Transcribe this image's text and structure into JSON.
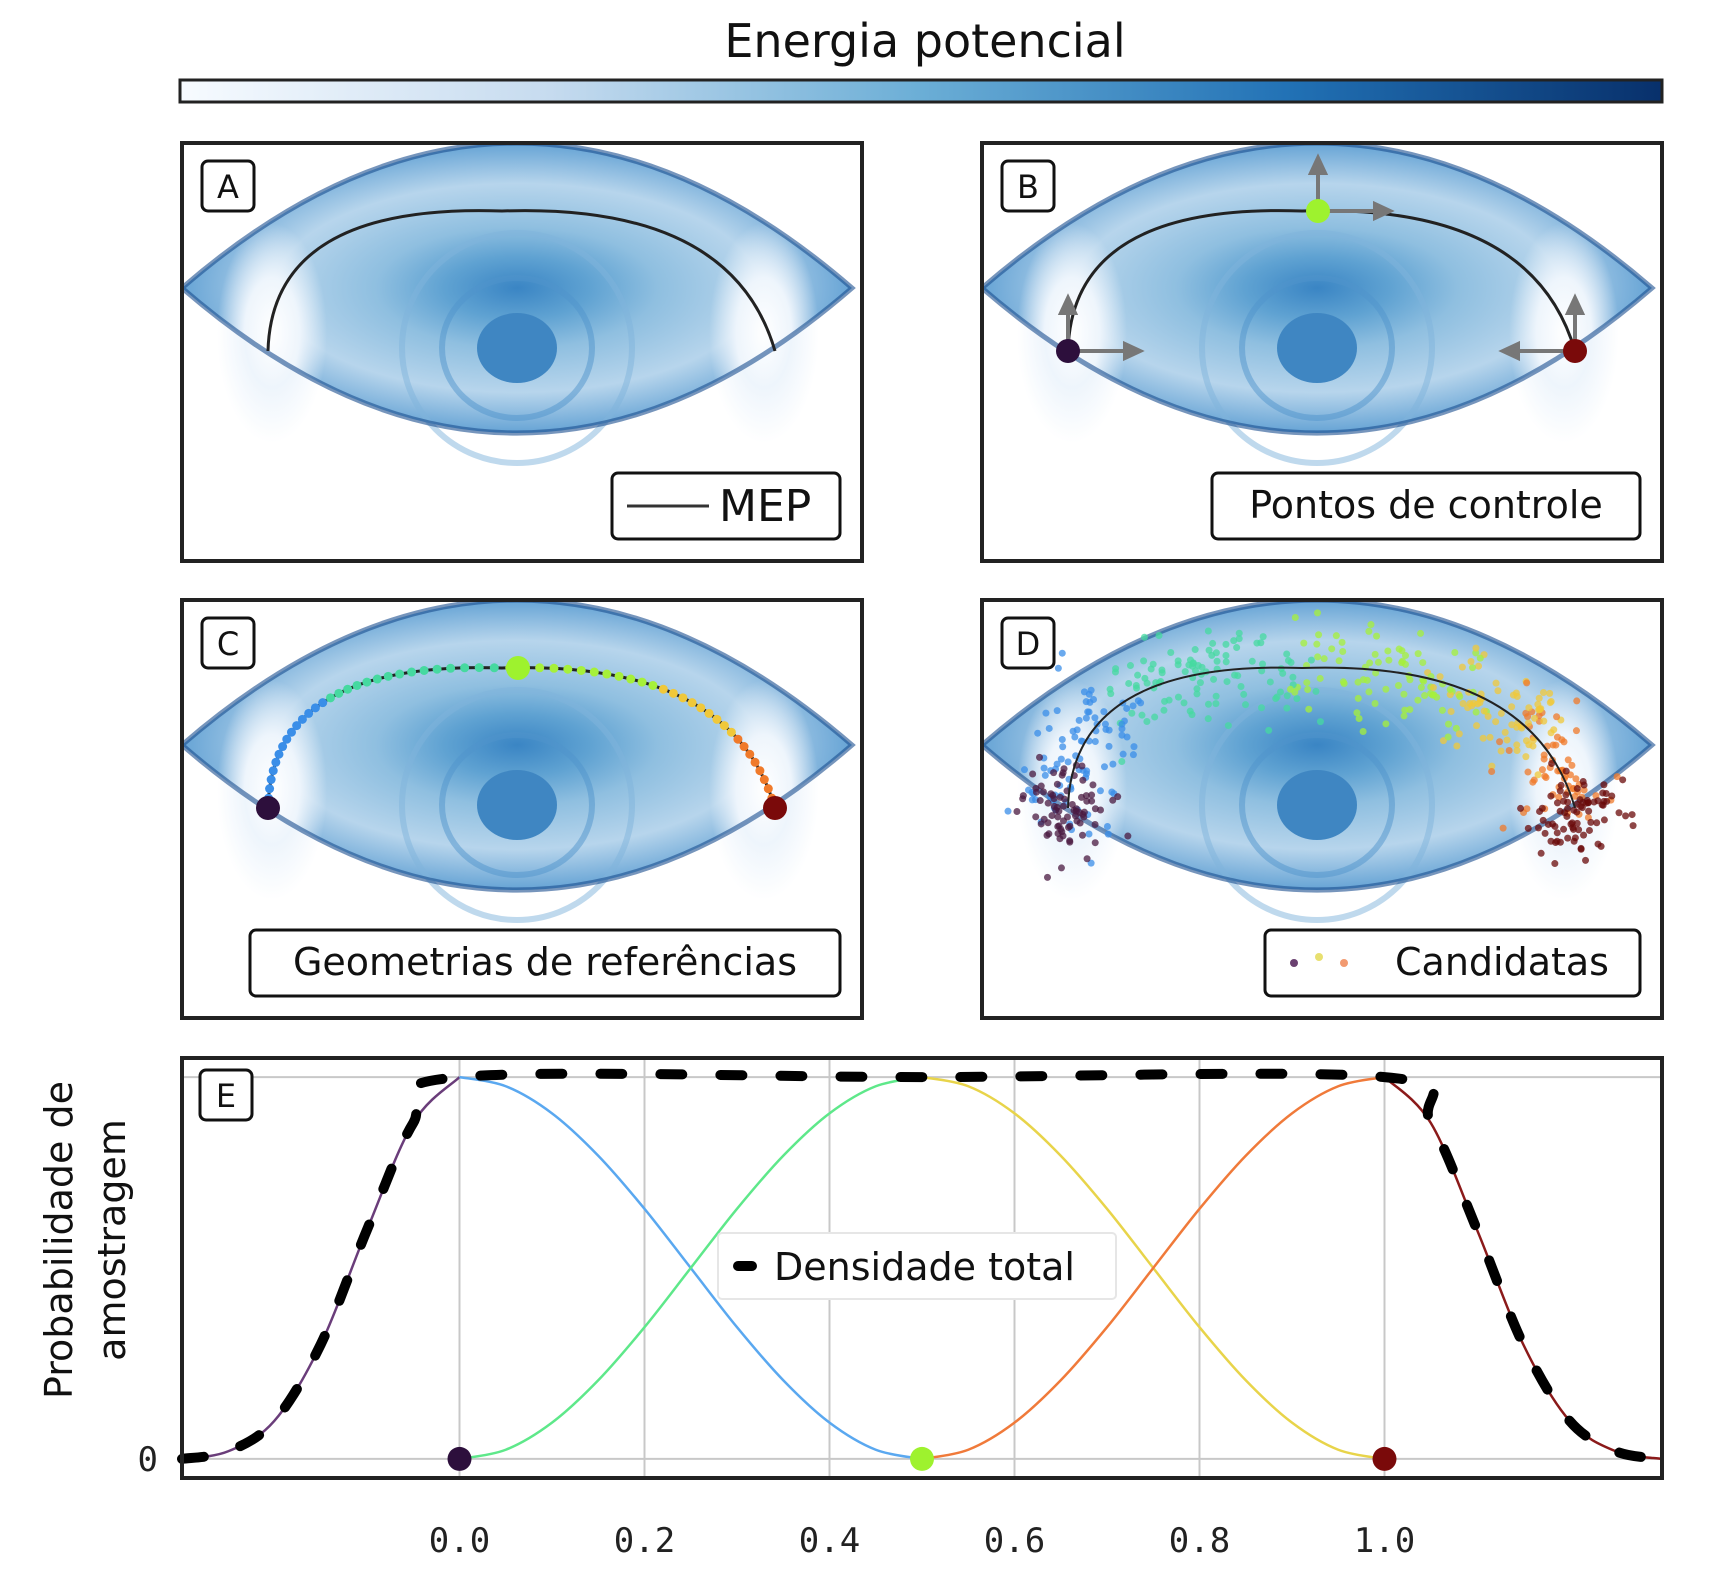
{
  "colorbar": {
    "title": "Energia potencial",
    "colormap": [
      "#f7fbff",
      "#c6dbef",
      "#6baed6",
      "#2171b5",
      "#08306b"
    ]
  },
  "panels": [
    {
      "letter": "A",
      "legend": "MEP"
    },
    {
      "letter": "B",
      "legend": "Pontos de controle"
    },
    {
      "letter": "C",
      "legend": "Geometrias de referências"
    },
    {
      "letter": "D",
      "legend": "Candidatas"
    }
  ],
  "control_point_colors": [
    "#2d0f3c",
    "#9ef22e",
    "#7a0a0a"
  ],
  "chart_data": [
    {
      "type": "line",
      "panel": "E",
      "letter": "E",
      "ylabel_line1": "Probabilidade de",
      "ylabel_line2": "amostragem",
      "xticks": [
        "0.0",
        "0.2",
        "0.4",
        "0.6",
        "0.8",
        "1.0"
      ],
      "xtick_values": [
        0.0,
        0.2,
        0.4,
        0.6,
        0.8,
        1.0
      ],
      "yticks": [
        "0"
      ],
      "xlim": [
        -0.3,
        1.3
      ],
      "ylim": [
        -0.05,
        1.05
      ],
      "grid": true,
      "legend": {
        "label": "Densidade total",
        "placement": "center"
      },
      "control_points": [
        0.0,
        0.5,
        1.0
      ],
      "series": [
        {
          "color": "#6a3d7a",
          "x": [
            -0.3,
            -0.25,
            -0.2,
            -0.15,
            -0.1,
            -0.05,
            0.0
          ],
          "y": [
            0.0,
            0.02,
            0.1,
            0.3,
            0.6,
            0.88,
            1.0
          ]
        },
        {
          "color": "#5aa8f0",
          "x": [
            0.0,
            0.05,
            0.1,
            0.15,
            0.2,
            0.25,
            0.3,
            0.35,
            0.4,
            0.45,
            0.5
          ],
          "y": [
            1.0,
            0.976,
            0.905,
            0.794,
            0.655,
            0.5,
            0.345,
            0.206,
            0.095,
            0.024,
            0.0
          ]
        },
        {
          "color": "#5ee88a",
          "x": [
            0.0,
            0.05,
            0.1,
            0.15,
            0.2,
            0.25,
            0.3,
            0.35,
            0.4,
            0.45,
            0.5
          ],
          "y": [
            0.0,
            0.024,
            0.095,
            0.206,
            0.345,
            0.5,
            0.655,
            0.794,
            0.905,
            0.976,
            1.0
          ]
        },
        {
          "color": "#e8d44a",
          "x": [
            0.5,
            0.55,
            0.6,
            0.65,
            0.7,
            0.75,
            0.8,
            0.85,
            0.9,
            0.95,
            1.0
          ],
          "y": [
            1.0,
            0.976,
            0.905,
            0.794,
            0.655,
            0.5,
            0.345,
            0.206,
            0.095,
            0.024,
            0.0
          ]
        },
        {
          "color": "#f07a3a",
          "x": [
            0.5,
            0.55,
            0.6,
            0.65,
            0.7,
            0.75,
            0.8,
            0.85,
            0.9,
            0.95,
            1.0
          ],
          "y": [
            0.0,
            0.024,
            0.095,
            0.206,
            0.345,
            0.5,
            0.655,
            0.794,
            0.905,
            0.976,
            1.0
          ]
        },
        {
          "color": "#8b1a1a",
          "x": [
            1.0,
            1.05,
            1.1,
            1.15,
            1.2,
            1.25,
            1.3
          ],
          "y": [
            1.0,
            0.88,
            0.6,
            0.3,
            0.1,
            0.02,
            0.0
          ]
        },
        {
          "name": "Densidade total",
          "color": "#000000",
          "dashed": true,
          "x": [
            -0.3,
            -0.25,
            -0.2,
            -0.15,
            -0.1,
            -0.05,
            0.0,
            0.5,
            1.0,
            1.05,
            1.1,
            1.15,
            1.2,
            1.25,
            1.3
          ],
          "y": [
            0.0,
            0.02,
            0.1,
            0.3,
            0.6,
            0.88,
            1.0,
            1.0,
            1.0,
            0.88,
            0.6,
            0.3,
            0.1,
            0.02,
            0.0
          ]
        }
      ]
    }
  ]
}
